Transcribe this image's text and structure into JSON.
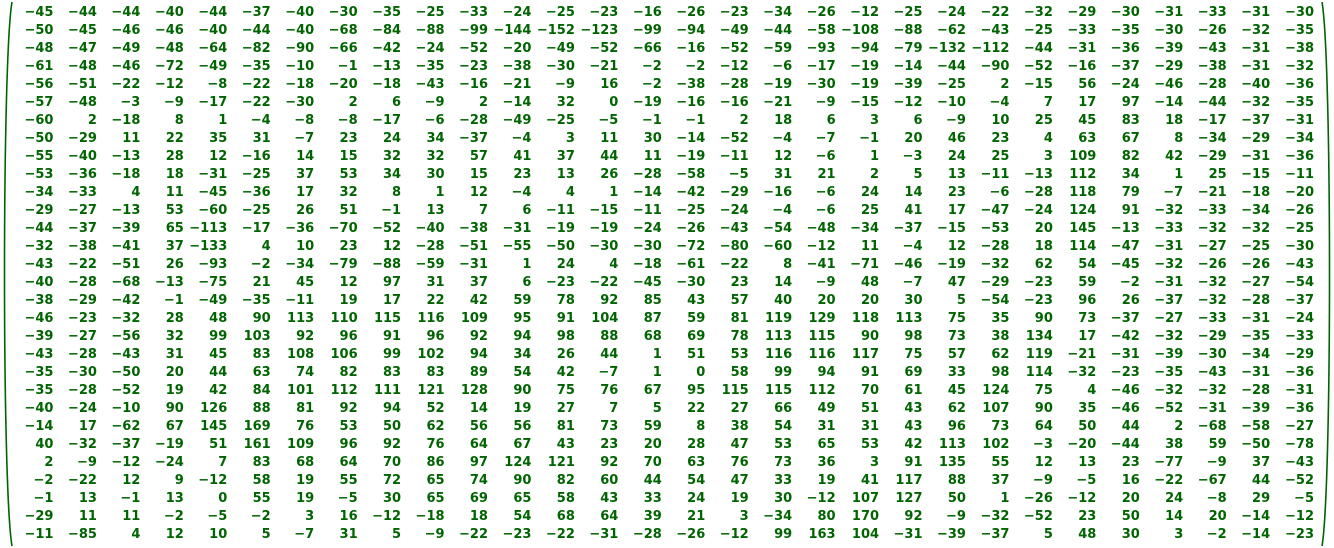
{
  "colors": {
    "text": "#006400",
    "bracket": "#006400",
    "background": "#ffffff"
  },
  "matrix": {
    "rows": [
      [
        "−45",
        "−44",
        "−44",
        "−40",
        "−44",
        "−37",
        "−40",
        "−30",
        "−35",
        "−25",
        "−33",
        "−24",
        "−25",
        "−23",
        "−16",
        "−26",
        "−23",
        "−34",
        "−26",
        "−12",
        "−25",
        "−24",
        "−22",
        "−32",
        "−29",
        "−30",
        "−31",
        "−33",
        "−31",
        "−30"
      ],
      [
        "−50",
        "−45",
        "−46",
        "−46",
        "−40",
        "−44",
        "−40",
        "−68",
        "−84",
        "−88",
        "−99",
        "−144",
        "−152",
        "−123",
        "−99",
        "−94",
        "−49",
        "−44",
        "−58",
        "−108",
        "−88",
        "−62",
        "−43",
        "−25",
        "−33",
        "−35",
        "−30",
        "−26",
        "−32",
        "−35"
      ],
      [
        "−48",
        "−47",
        "−49",
        "−48",
        "−64",
        "−82",
        "−90",
        "−66",
        "−42",
        "−24",
        "−52",
        "−20",
        "−49",
        "−52",
        "−66",
        "−16",
        "−52",
        "−59",
        "−93",
        "−94",
        "−79",
        "−132",
        "−112",
        "−44",
        "−31",
        "−36",
        "−39",
        "−43",
        "−31",
        "−38"
      ],
      [
        "−61",
        "−48",
        "−46",
        "−72",
        "−49",
        "−35",
        "−10",
        "−1",
        "−13",
        "−35",
        "−23",
        "−38",
        "−30",
        "−21",
        "−2",
        "−2",
        "−12",
        "−6",
        "−17",
        "−19",
        "−14",
        "−44",
        "−90",
        "−52",
        "−16",
        "−37",
        "−29",
        "−38",
        "−31",
        "−32"
      ],
      [
        "−56",
        "−51",
        "−22",
        "−12",
        "−8",
        "−22",
        "−18",
        "−20",
        "−18",
        "−43",
        "−16",
        "−21",
        "−9",
        "16",
        "−2",
        "−38",
        "−28",
        "−19",
        "−30",
        "−19",
        "−39",
        "−25",
        "2",
        "−15",
        "56",
        "−24",
        "−46",
        "−28",
        "−40",
        "−36"
      ],
      [
        "−57",
        "−48",
        "−3",
        "−9",
        "−17",
        "−22",
        "−30",
        "2",
        "6",
        "−9",
        "2",
        "−14",
        "32",
        "0",
        "−19",
        "−16",
        "−16",
        "−21",
        "−9",
        "−15",
        "−12",
        "−10",
        "−4",
        "7",
        "17",
        "97",
        "−14",
        "−44",
        "−32",
        "−35"
      ],
      [
        "−60",
        "2",
        "−18",
        "8",
        "1",
        "−4",
        "−8",
        "−8",
        "−17",
        "−6",
        "−28",
        "−49",
        "−25",
        "−5",
        "−1",
        "−1",
        "2",
        "18",
        "6",
        "3",
        "6",
        "−9",
        "10",
        "25",
        "45",
        "83",
        "18",
        "−17",
        "−37",
        "−31"
      ],
      [
        "−50",
        "−29",
        "11",
        "22",
        "35",
        "31",
        "−7",
        "23",
        "24",
        "34",
        "−37",
        "−4",
        "3",
        "11",
        "30",
        "−14",
        "−52",
        "−4",
        "−7",
        "−1",
        "20",
        "46",
        "23",
        "4",
        "63",
        "67",
        "8",
        "−34",
        "−29",
        "−34"
      ],
      [
        "−55",
        "−40",
        "−13",
        "28",
        "12",
        "−16",
        "14",
        "15",
        "32",
        "32",
        "57",
        "41",
        "37",
        "44",
        "11",
        "−19",
        "−11",
        "12",
        "−6",
        "1",
        "−3",
        "24",
        "25",
        "3",
        "109",
        "82",
        "42",
        "−29",
        "−31",
        "−36"
      ],
      [
        "−53",
        "−36",
        "−18",
        "18",
        "−31",
        "−25",
        "37",
        "53",
        "34",
        "30",
        "15",
        "23",
        "13",
        "26",
        "−28",
        "−58",
        "−5",
        "31",
        "21",
        "2",
        "5",
        "13",
        "−11",
        "−13",
        "112",
        "34",
        "1",
        "25",
        "−15",
        "−11"
      ],
      [
        "−34",
        "−33",
        "4",
        "11",
        "−45",
        "−36",
        "17",
        "32",
        "8",
        "1",
        "12",
        "−4",
        "4",
        "1",
        "−14",
        "−42",
        "−29",
        "−16",
        "−6",
        "24",
        "14",
        "23",
        "−6",
        "−28",
        "118",
        "79",
        "−7",
        "−21",
        "−18",
        "−20"
      ],
      [
        "−29",
        "−27",
        "−13",
        "53",
        "−60",
        "−25",
        "26",
        "51",
        "−1",
        "13",
        "7",
        "6",
        "−11",
        "−15",
        "−11",
        "−25",
        "−24",
        "−4",
        "−6",
        "25",
        "41",
        "17",
        "−47",
        "−24",
        "124",
        "91",
        "−32",
        "−33",
        "−34",
        "−26"
      ],
      [
        "−44",
        "−37",
        "−39",
        "65",
        "−113",
        "−17",
        "−36",
        "−70",
        "−52",
        "−40",
        "−38",
        "−31",
        "−19",
        "−19",
        "−24",
        "−26",
        "−43",
        "−54",
        "−48",
        "−34",
        "−37",
        "−15",
        "−53",
        "20",
        "145",
        "−13",
        "−33",
        "−32",
        "−32",
        "−25"
      ],
      [
        "−32",
        "−38",
        "−41",
        "37",
        "−133",
        "4",
        "10",
        "23",
        "12",
        "−28",
        "−51",
        "−55",
        "−50",
        "−30",
        "−30",
        "−72",
        "−80",
        "−60",
        "−12",
        "11",
        "−4",
        "12",
        "−28",
        "18",
        "114",
        "−47",
        "−31",
        "−27",
        "−25",
        "−30"
      ],
      [
        "−43",
        "−22",
        "−51",
        "26",
        "−93",
        "−2",
        "−34",
        "−79",
        "−88",
        "−59",
        "−31",
        "1",
        "24",
        "4",
        "−18",
        "−61",
        "−22",
        "8",
        "−41",
        "−71",
        "−46",
        "−19",
        "−32",
        "62",
        "54",
        "−45",
        "−32",
        "−26",
        "−26",
        "−43"
      ],
      [
        "−40",
        "−28",
        "−68",
        "−13",
        "−75",
        "21",
        "45",
        "12",
        "97",
        "31",
        "37",
        "6",
        "−23",
        "−22",
        "−45",
        "−30",
        "23",
        "14",
        "−9",
        "48",
        "−7",
        "47",
        "−29",
        "−23",
        "59",
        "−2",
        "−31",
        "−32",
        "−27",
        "−54"
      ],
      [
        "−38",
        "−29",
        "−42",
        "−1",
        "−49",
        "−35",
        "−11",
        "19",
        "17",
        "22",
        "42",
        "59",
        "78",
        "92",
        "85",
        "43",
        "57",
        "40",
        "20",
        "20",
        "30",
        "5",
        "−54",
        "−23",
        "96",
        "26",
        "−37",
        "−32",
        "−28",
        "−37"
      ],
      [
        "−46",
        "−23",
        "−32",
        "28",
        "48",
        "90",
        "113",
        "110",
        "115",
        "116",
        "109",
        "95",
        "91",
        "104",
        "87",
        "59",
        "81",
        "119",
        "129",
        "118",
        "113",
        "75",
        "35",
        "90",
        "73",
        "−37",
        "−27",
        "−33",
        "−31",
        "−24"
      ],
      [
        "−39",
        "−27",
        "−56",
        "32",
        "99",
        "103",
        "92",
        "96",
        "91",
        "96",
        "92",
        "94",
        "98",
        "88",
        "68",
        "69",
        "78",
        "113",
        "115",
        "90",
        "98",
        "73",
        "38",
        "134",
        "17",
        "−42",
        "−32",
        "−29",
        "−35",
        "−33"
      ],
      [
        "−43",
        "−28",
        "−43",
        "31",
        "45",
        "83",
        "108",
        "106",
        "99",
        "102",
        "94",
        "34",
        "26",
        "44",
        "1",
        "51",
        "53",
        "116",
        "116",
        "117",
        "75",
        "57",
        "62",
        "119",
        "−21",
        "−31",
        "−39",
        "−30",
        "−34",
        "−29"
      ],
      [
        "−35",
        "−30",
        "−50",
        "20",
        "44",
        "63",
        "74",
        "82",
        "83",
        "83",
        "89",
        "54",
        "42",
        "−7",
        "1",
        "0",
        "58",
        "99",
        "94",
        "91",
        "69",
        "33",
        "98",
        "114",
        "−32",
        "−23",
        "−35",
        "−43",
        "−31",
        "−36"
      ],
      [
        "−35",
        "−28",
        "−52",
        "19",
        "42",
        "84",
        "101",
        "112",
        "111",
        "121",
        "128",
        "90",
        "75",
        "76",
        "67",
        "95",
        "115",
        "115",
        "112",
        "70",
        "61",
        "45",
        "124",
        "75",
        "4",
        "−46",
        "−32",
        "−32",
        "−28",
        "−31"
      ],
      [
        "−40",
        "−24",
        "−10",
        "90",
        "126",
        "88",
        "81",
        "92",
        "94",
        "52",
        "14",
        "19",
        "27",
        "7",
        "5",
        "22",
        "27",
        "66",
        "49",
        "51",
        "43",
        "62",
        "107",
        "90",
        "35",
        "−46",
        "−52",
        "−31",
        "−39",
        "−36"
      ],
      [
        "−14",
        "17",
        "−62",
        "67",
        "145",
        "169",
        "76",
        "53",
        "50",
        "62",
        "56",
        "56",
        "81",
        "73",
        "59",
        "8",
        "38",
        "54",
        "31",
        "31",
        "43",
        "96",
        "73",
        "64",
        "50",
        "44",
        "2",
        "−68",
        "−58",
        "−27"
      ],
      [
        "40",
        "−32",
        "−37",
        "−19",
        "51",
        "161",
        "109",
        "96",
        "92",
        "76",
        "64",
        "67",
        "43",
        "23",
        "20",
        "28",
        "47",
        "53",
        "65",
        "53",
        "42",
        "113",
        "102",
        "−3",
        "−20",
        "−44",
        "38",
        "59",
        "−50",
        "−78"
      ],
      [
        "2",
        "−9",
        "−12",
        "−24",
        "7",
        "83",
        "68",
        "64",
        "70",
        "86",
        "97",
        "124",
        "121",
        "92",
        "70",
        "63",
        "76",
        "73",
        "36",
        "3",
        "91",
        "135",
        "55",
        "12",
        "13",
        "23",
        "−77",
        "−9",
        "37",
        "−43"
      ],
      [
        "−2",
        "−22",
        "12",
        "9",
        "−12",
        "58",
        "19",
        "55",
        "72",
        "65",
        "74",
        "90",
        "82",
        "60",
        "44",
        "54",
        "47",
        "33",
        "19",
        "41",
        "117",
        "88",
        "37",
        "−9",
        "−5",
        "16",
        "−22",
        "−67",
        "44",
        "−52"
      ],
      [
        "−1",
        "13",
        "−1",
        "13",
        "0",
        "55",
        "19",
        "−5",
        "30",
        "65",
        "69",
        "65",
        "58",
        "43",
        "33",
        "24",
        "19",
        "30",
        "−12",
        "107",
        "127",
        "50",
        "1",
        "−26",
        "−12",
        "20",
        "24",
        "−8",
        "29",
        "−5"
      ],
      [
        "−29",
        "11",
        "11",
        "−2",
        "−5",
        "−2",
        "3",
        "16",
        "−12",
        "−18",
        "18",
        "54",
        "68",
        "64",
        "39",
        "21",
        "3",
        "−34",
        "80",
        "170",
        "92",
        "−9",
        "−32",
        "−52",
        "23",
        "50",
        "14",
        "20",
        "−14",
        "−12"
      ],
      [
        "−11",
        "−85",
        "4",
        "12",
        "10",
        "5",
        "−7",
        "31",
        "5",
        "−9",
        "−22",
        "−23",
        "−22",
        "−31",
        "−28",
        "−26",
        "−12",
        "99",
        "163",
        "104",
        "−31",
        "−39",
        "−37",
        "5",
        "48",
        "30",
        "3",
        "−2",
        "−14",
        "−23"
      ]
    ]
  }
}
